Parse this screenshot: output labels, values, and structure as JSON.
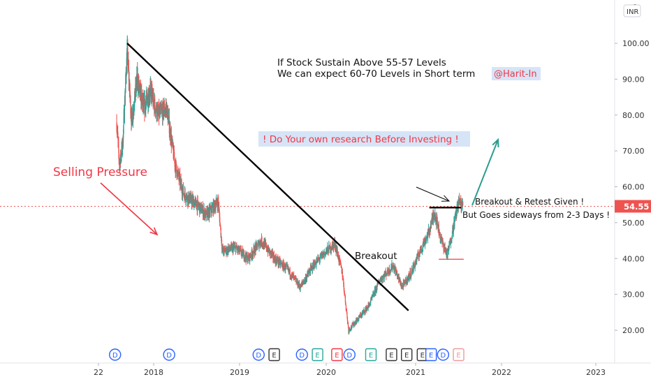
{
  "chart_data": {
    "type": "candlestick",
    "currency": "INR",
    "ylim": [
      10,
      110
    ],
    "y_ticks": [
      "20.00",
      "30.00",
      "40.00",
      "50.00",
      "60.00",
      "70.00",
      "80.00",
      "90.00",
      "100.00"
    ],
    "y_top_tick": "1",
    "x_ticks": [
      "22",
      "2018",
      "2019",
      "2020",
      "2021",
      "2022",
      "2023"
    ],
    "x_tick_dates": [
      "2017.0",
      "2018.0",
      "2019.0",
      "2020.0",
      "2021.0",
      "2022.0",
      "2023.0"
    ],
    "price_points": [
      {
        "x": 2017.33,
        "y": 78
      },
      {
        "x": 2017.38,
        "y": 66
      },
      {
        "x": 2017.44,
        "y": 72
      },
      {
        "x": 2017.52,
        "y": 98
      },
      {
        "x": 2017.6,
        "y": 78
      },
      {
        "x": 2017.7,
        "y": 90
      },
      {
        "x": 2017.82,
        "y": 82
      },
      {
        "x": 2017.95,
        "y": 87
      },
      {
        "x": 2018.05,
        "y": 80
      },
      {
        "x": 2018.15,
        "y": 82
      },
      {
        "x": 2018.25,
        "y": 66
      },
      {
        "x": 2018.35,
        "y": 58
      },
      {
        "x": 2018.5,
        "y": 55
      },
      {
        "x": 2018.62,
        "y": 52
      },
      {
        "x": 2018.75,
        "y": 56
      },
      {
        "x": 2018.8,
        "y": 42
      },
      {
        "x": 2018.95,
        "y": 43
      },
      {
        "x": 2019.1,
        "y": 40
      },
      {
        "x": 2019.25,
        "y": 45
      },
      {
        "x": 2019.4,
        "y": 40
      },
      {
        "x": 2019.55,
        "y": 37
      },
      {
        "x": 2019.7,
        "y": 32
      },
      {
        "x": 2019.85,
        "y": 38
      },
      {
        "x": 2020.0,
        "y": 42
      },
      {
        "x": 2020.1,
        "y": 44
      },
      {
        "x": 2020.18,
        "y": 36
      },
      {
        "x": 2020.25,
        "y": 20
      },
      {
        "x": 2020.35,
        "y": 23
      },
      {
        "x": 2020.48,
        "y": 27
      },
      {
        "x": 2020.6,
        "y": 34
      },
      {
        "x": 2020.75,
        "y": 38
      },
      {
        "x": 2020.85,
        "y": 32
      },
      {
        "x": 2020.95,
        "y": 36
      },
      {
        "x": 2021.05,
        "y": 42
      },
      {
        "x": 2021.15,
        "y": 47
      },
      {
        "x": 2021.22,
        "y": 53
      },
      {
        "x": 2021.3,
        "y": 45
      },
      {
        "x": 2021.37,
        "y": 41
      },
      {
        "x": 2021.45,
        "y": 50
      },
      {
        "x": 2021.5,
        "y": 56
      },
      {
        "x": 2021.55,
        "y": 54.55
      }
    ],
    "current_price": "54.55",
    "events": [
      {
        "label": "D",
        "x": 2017.3
      },
      {
        "label": "D",
        "x": 2018.18
      },
      {
        "label": "D",
        "x": 2019.22
      },
      {
        "label": "E",
        "x": 2019.4
      },
      {
        "label": "D",
        "x": 2019.72
      },
      {
        "label": "E",
        "x": 2019.9
      },
      {
        "label": "E",
        "x": 2020.12
      },
      {
        "label": "D",
        "x": 2020.26
      },
      {
        "label": "E",
        "x": 2020.5
      },
      {
        "label": "E",
        "x": 2020.73
      },
      {
        "label": "E",
        "x": 2020.9
      },
      {
        "label": "E",
        "x": 2021.08
      },
      {
        "label": "E",
        "x": 2021.18
      },
      {
        "label": "D",
        "x": 2021.32
      },
      {
        "label": "E",
        "x": 2021.5
      }
    ],
    "event_colors": [
      "#2962ff",
      "#2962ff",
      "#2962ff",
      "#333333",
      "#2962ff",
      "#26a69a",
      "#f23645",
      "#2962ff",
      "#26a69a",
      "#333333",
      "#333333",
      "#333333",
      "#2962ff",
      "#2962ff",
      "#ef9a9a"
    ],
    "colors": {
      "up": "#26a69a",
      "down": "#ef5350",
      "price_line": "#ef5350",
      "trend": "#000000",
      "annot_red": "#f23645",
      "annot_teal": "#2a9d8f",
      "label_bg": "#d6e4f7"
    }
  },
  "annotations": {
    "line1": "If Stock Sustain Above 55-57 Levels",
    "line2": "We can expect 60-70 Levels in Short term",
    "handle": "@Harit-In",
    "disclaimer": "! Do Your own research Before Investing !",
    "selling": "Selling Pressure",
    "breakout": "Breakout",
    "retest1": "Breakout & Retest Given !",
    "retest2": "But Goes sideways from 2-3 Days !"
  }
}
